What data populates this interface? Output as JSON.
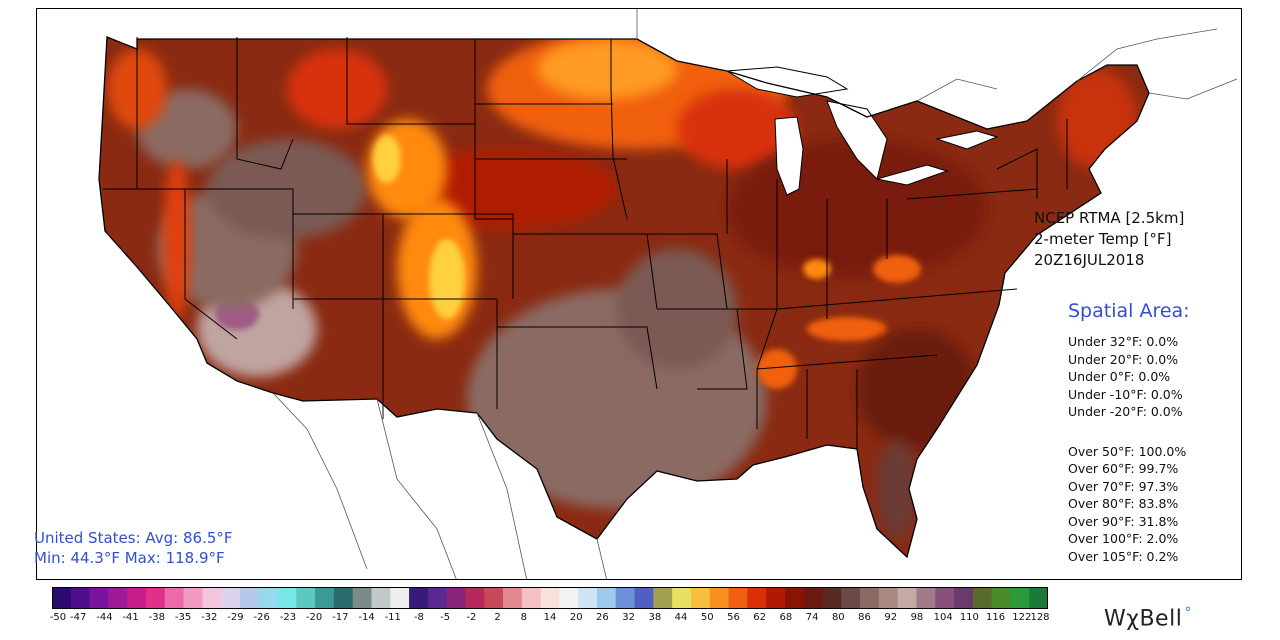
{
  "product": {
    "source": "NCEP RTMA [2.5km]",
    "variable": "2-meter Temp [°F]",
    "valid_time": "20Z16JUL2018"
  },
  "spatial_area": {
    "title": "Spatial Area:",
    "under": [
      "Under 32°F: 0.0%",
      "Under 20°F: 0.0%",
      "Under 0°F: 0.0%",
      "Under -10°F: 0.0%",
      "Under -20°F: 0.0%"
    ],
    "over": [
      "Over 50°F: 100.0%",
      "Over 60°F: 99.7%",
      "Over 70°F: 97.3%",
      "Over 80°F: 83.8%",
      "Over 90°F: 31.8%",
      "Over 100°F: 2.0%",
      "Over 105°F: 0.2%"
    ]
  },
  "summary": {
    "line1": "United States: Avg:  86.5°F",
    "line2": "Min:  44.3°F Max: 118.9°F"
  },
  "colorbar": {
    "ticks": [
      "-50",
      "-47",
      "-44",
      "-41",
      "-38",
      "-35",
      "-32",
      "-29",
      "-26",
      "-23",
      "-20",
      "-17",
      "-14",
      "-11",
      "-8",
      "-5",
      "-2",
      "2",
      "8",
      "14",
      "20",
      "26",
      "32",
      "38",
      "44",
      "50",
      "56",
      "62",
      "68",
      "74",
      "80",
      "86",
      "92",
      "98",
      "104",
      "110",
      "116",
      "122",
      "128"
    ],
    "colors": [
      "#2a0a6e",
      "#4d0f8a",
      "#7a14a0",
      "#a0189a",
      "#c81e8c",
      "#e0308a",
      "#ec6aa8",
      "#f09ac4",
      "#f6c4dc",
      "#dcd2ec",
      "#b4c8ec",
      "#96d8ee",
      "#78e6e6",
      "#5ec8c0",
      "#3a9a96",
      "#2a6a6a",
      "#7a8a88",
      "#c0c8c8",
      "#eeeeee",
      "#3a1a78",
      "#5a2890",
      "#8a2478",
      "#b4285a",
      "#c84a5a",
      "#e08a90",
      "#f4c0c4",
      "#fae0dc",
      "#f2f2f2",
      "#cce4f4",
      "#9ec8ec",
      "#6a90d8",
      "#5060c0",
      "#a0a050",
      "#e8e060",
      "#f8c040",
      "#f89020",
      "#f06010",
      "#d83008",
      "#b01a04",
      "#8a1404",
      "#6a1a10",
      "#5a2a22",
      "#6a4a44",
      "#8a6a62",
      "#a88a82",
      "#c4aaa4",
      "#a07a88",
      "#88507a",
      "#6a3a6a",
      "#5a6a2a",
      "#4a8a2a",
      "#2a9a3a",
      "#1a7a3a"
    ]
  },
  "colors": {
    "accent": "#2f4fd6",
    "hot": "#ff8a00",
    "very_hot": "#ffd040",
    "warm": "#b02a08",
    "dark_warm": "#6a1a10",
    "mild": "#8a6a62",
    "cool_land": "#c4a8a2"
  },
  "logo": {
    "text": "WχBell",
    "dot": "°"
  }
}
